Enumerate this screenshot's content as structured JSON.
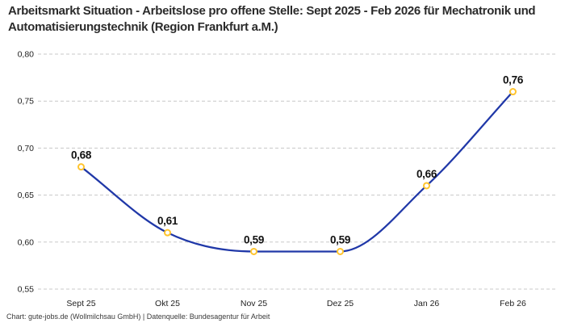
{
  "title": "Arbeitsmarkt Situation - Arbeitslose pro offene Stelle: Sept 2025 - Feb 2026 für Mechatronik und Automatisierungstechnik (Region Frankfurt a.M.)",
  "footer": "Chart: gute-jobs.de (Wollmilchsau GmbH) | Datenquelle: Bundesagentur für Arbeit",
  "chart_data": {
    "type": "line",
    "categories": [
      "Sept 25",
      "Okt 25",
      "Nov 25",
      "Dez 25",
      "Jan 26",
      "Feb 26"
    ],
    "values": [
      0.68,
      0.61,
      0.59,
      0.59,
      0.66,
      0.76
    ],
    "data_labels": [
      "0,68",
      "0,61",
      "0,59",
      "0,59",
      "0,66",
      "0,76"
    ],
    "y_ticks": [
      0.55,
      0.6,
      0.65,
      0.7,
      0.75,
      0.8
    ],
    "y_tick_labels": [
      "0,55",
      "0,60",
      "0,65",
      "0,70",
      "0,75",
      "0,80"
    ],
    "ylim": [
      0.55,
      0.8
    ],
    "xlabel": "",
    "ylabel": "",
    "grid": "horizontal-dashed",
    "legend": "none",
    "line_style": "smooth-monotone",
    "colors": {
      "line": "#2038A8",
      "marker_ring": "#FFC42D",
      "marker_fill": "#FFFFFF",
      "gridline": "#C8C8C8",
      "title_text": "#2B2B2B",
      "tick_text": "#222222",
      "data_label_text": "#111111",
      "footer_text": "#3A3A3A",
      "background": "#FFFFFF"
    }
  }
}
